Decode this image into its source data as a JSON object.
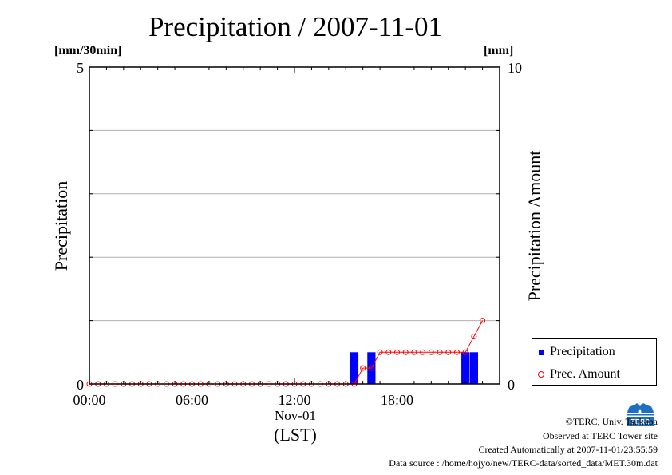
{
  "title": "Precipitation / 2007-11-01",
  "left_unit": "[mm/30min]",
  "right_unit": "[mm]",
  "left_axis_label": "Precipitation",
  "right_axis_label": "Precipitation Amount",
  "x_sublabel": "Nov-01",
  "x_axis_label": "(LST)",
  "legend": {
    "items": [
      {
        "label": "Precipitation",
        "color": "#0000ff",
        "marker": "square"
      },
      {
        "label": "Prec. Amount",
        "color": "#ff0000",
        "marker": "circle"
      }
    ]
  },
  "footer": {
    "copyright": "©TERC, Univ. Tsukuba",
    "site": "Observed at TERC Tower site",
    "created": "Created Automatically at 2007-11-01/23:55:59",
    "source": "Data source : /home/hojyo/new/TERC-data/sorted_data/MET.30m.dat"
  },
  "logo_icon": "terc-logo-icon",
  "chart_data": {
    "type": "bar",
    "x_ticks": [
      "00:00",
      "06:00",
      "12:00",
      "18:00"
    ],
    "x_range": [
      "00:00",
      "24:00"
    ],
    "y_left": {
      "ticks": [
        0,
        5
      ],
      "range": [
        0,
        5
      ]
    },
    "y_right": {
      "ticks": [
        0,
        10
      ],
      "range": [
        0,
        10
      ]
    },
    "grid": "horizontal",
    "legend_position": "right",
    "series": [
      {
        "name": "Precipitation",
        "type": "bar",
        "axis": "left",
        "color": "#0000ff",
        "x": [
          "15:30",
          "16:30",
          "22:00",
          "22:30"
        ],
        "values": [
          0.5,
          0.5,
          0.5,
          0.5
        ]
      },
      {
        "name": "Prec. Amount",
        "type": "line",
        "axis": "right",
        "color": "#ff0000",
        "x": [
          "00:00",
          "00:30",
          "01:00",
          "01:30",
          "02:00",
          "02:30",
          "03:00",
          "03:30",
          "04:00",
          "04:30",
          "05:00",
          "05:30",
          "06:00",
          "06:30",
          "07:00",
          "07:30",
          "08:00",
          "08:30",
          "09:00",
          "09:30",
          "10:00",
          "10:30",
          "11:00",
          "11:30",
          "12:00",
          "12:30",
          "13:00",
          "13:30",
          "14:00",
          "14:30",
          "15:00",
          "15:30",
          "16:00",
          "16:30",
          "17:00",
          "17:30",
          "18:00",
          "18:30",
          "19:00",
          "19:30",
          "20:00",
          "20:30",
          "21:00",
          "21:30",
          "22:00",
          "22:30",
          "23:00"
        ],
        "values": [
          0,
          0,
          0,
          0,
          0,
          0,
          0,
          0,
          0,
          0,
          0,
          0,
          0,
          0,
          0,
          0,
          0,
          0,
          0,
          0,
          0,
          0,
          0,
          0,
          0,
          0,
          0,
          0,
          0,
          0,
          0,
          0,
          0.5,
          0.5,
          1.0,
          1.0,
          1.0,
          1.0,
          1.0,
          1.0,
          1.0,
          1.0,
          1.0,
          1.0,
          1.0,
          1.5,
          2.0
        ]
      }
    ]
  }
}
